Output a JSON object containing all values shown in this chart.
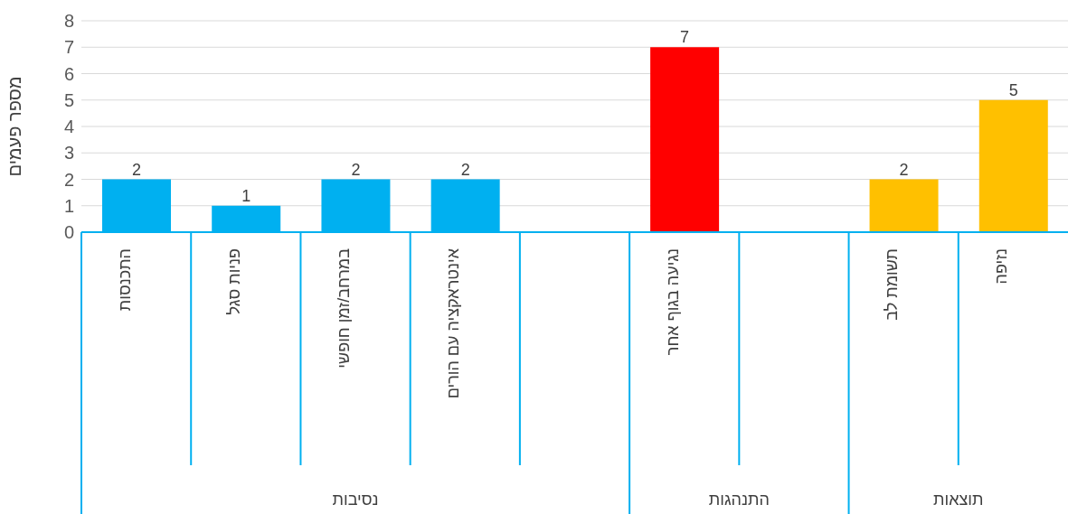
{
  "chart_data": {
    "type": "bar",
    "categories": [
      "התכנסות",
      "פניות סגל",
      "במרחב/זמן חופשי",
      "אינטראקציה עם הורים",
      null,
      "נגיעה בגוף אחר",
      null,
      "תשומת לב",
      "נזיפה"
    ],
    "values": [
      2,
      1,
      2,
      2,
      null,
      7,
      null,
      2,
      5
    ],
    "colors": [
      "#00b0f0",
      "#00b0f0",
      "#00b0f0",
      "#00b0f0",
      "#00b0f0",
      "#ff0000",
      "#ffc000",
      "#ffc000",
      "#ffc000"
    ],
    "ylabel": "מספר פעמים",
    "ylim": [
      0,
      8
    ],
    "yticks": [
      0,
      1,
      2,
      3,
      4,
      5,
      6,
      7,
      8
    ],
    "grid": "y",
    "data_labels": true,
    "annotations": [
      "נסיבות",
      "התנהגות",
      "תוצאות"
    ]
  }
}
